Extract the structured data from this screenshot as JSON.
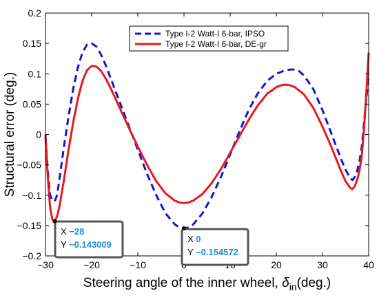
{
  "chart_data": {
    "type": "line",
    "xlabel": "Steering angle of the inner wheel,",
    "xlabel_symbol": "δ",
    "xlabel_subscript": "in",
    "xlabel_unit": "(deg.)",
    "ylabel": "Structural error (deg.)",
    "xlim": [
      -30,
      40
    ],
    "ylim": [
      -0.2,
      0.2
    ],
    "xticks": [
      -30,
      -20,
      -10,
      0,
      10,
      20,
      30,
      40
    ],
    "yticks": [
      -0.2,
      -0.15,
      -0.1,
      -0.05,
      0,
      0.05,
      0.1,
      0.15,
      0.2
    ],
    "ytick_labels": [
      "-0.2",
      "-0.15",
      "-0.1",
      "-0.05",
      "0",
      "0.05",
      "0.1",
      "0.15",
      "0.2"
    ],
    "grid": false,
    "legend_position": "top-center",
    "series": [
      {
        "name": "Type I-2 Watt-I 6-bar, IPSO",
        "color": "#1414d2",
        "style": "dashed",
        "x": [
          -30,
          -29.5,
          -29,
          -28.5,
          -28,
          -27.5,
          -27,
          -26,
          -25,
          -24,
          -23,
          -22,
          -21,
          -20,
          -19,
          -18,
          -17,
          -16,
          -15,
          -14,
          -12,
          -10,
          -8,
          -6,
          -4,
          -2,
          -1,
          0,
          1,
          2,
          4,
          6,
          8,
          10,
          12,
          14,
          16,
          18,
          20,
          22,
          23,
          24,
          25,
          26,
          28,
          30,
          32,
          34,
          35,
          36,
          36.5,
          37,
          37.5,
          38,
          38.5,
          39,
          39.5,
          40
        ],
        "y": [
          -0.005,
          -0.06,
          -0.1,
          -0.108,
          -0.11,
          -0.1,
          -0.075,
          -0.02,
          0.03,
          0.075,
          0.11,
          0.135,
          0.148,
          0.15,
          0.145,
          0.132,
          0.115,
          0.095,
          0.075,
          0.055,
          0.015,
          -0.025,
          -0.065,
          -0.1,
          -0.13,
          -0.148,
          -0.153,
          -0.155,
          -0.153,
          -0.148,
          -0.13,
          -0.103,
          -0.07,
          -0.033,
          0.005,
          0.04,
          0.068,
          0.088,
          0.1,
          0.106,
          0.107,
          0.107,
          0.104,
          0.097,
          0.075,
          0.04,
          0.0,
          -0.04,
          -0.058,
          -0.072,
          -0.075,
          -0.07,
          -0.06,
          -0.045,
          -0.02,
          0.02,
          0.06,
          0.1
        ]
      },
      {
        "name": "Type I-2 Watt-I 6-bar, DE-gr",
        "color": "#e41a1c",
        "style": "solid",
        "x": [
          -30,
          -29.5,
          -29,
          -28.5,
          -28,
          -27.5,
          -27,
          -26,
          -25,
          -24,
          -23,
          -22,
          -21,
          -20,
          -19,
          -18,
          -17,
          -16,
          -15,
          -14,
          -12,
          -10,
          -8,
          -6,
          -4,
          -2,
          -1,
          0,
          1,
          2,
          4,
          6,
          8,
          10,
          12,
          14,
          16,
          18,
          20,
          21,
          22,
          23,
          24,
          26,
          28,
          30,
          32,
          34,
          35,
          36,
          36.5,
          37,
          37.5,
          38,
          38.5,
          39,
          39.5,
          40
        ],
        "y": [
          0.0,
          -0.07,
          -0.12,
          -0.14,
          -0.143,
          -0.135,
          -0.12,
          -0.075,
          -0.025,
          0.02,
          0.058,
          0.088,
          0.106,
          0.113,
          0.112,
          0.105,
          0.093,
          0.078,
          0.062,
          0.045,
          0.012,
          -0.02,
          -0.05,
          -0.077,
          -0.097,
          -0.109,
          -0.112,
          -0.113,
          -0.112,
          -0.109,
          -0.098,
          -0.08,
          -0.057,
          -0.03,
          -0.003,
          0.024,
          0.048,
          0.067,
          0.078,
          0.081,
          0.082,
          0.081,
          0.078,
          0.066,
          0.044,
          0.013,
          -0.022,
          -0.06,
          -0.077,
          -0.088,
          -0.09,
          -0.085,
          -0.075,
          -0.06,
          -0.035,
          0.01,
          0.07,
          0.135
        ]
      }
    ],
    "datatips": [
      {
        "x_key": "X",
        "x_value": "-28",
        "y_key": "Y",
        "y_value": "-0.143009",
        "at_x": -28,
        "at_y": -0.143009
      },
      {
        "x_key": "X",
        "x_value": "0",
        "y_key": "Y",
        "y_value": "-0.154572",
        "at_x": 0,
        "at_y": -0.154572
      }
    ]
  }
}
